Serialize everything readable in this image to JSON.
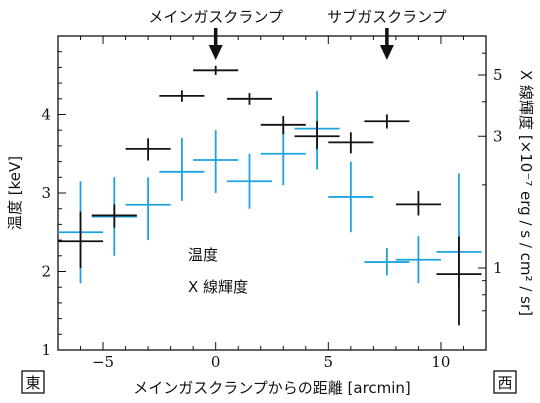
{
  "chart_data": {
    "type": "scatter",
    "title": "",
    "x": {
      "label": "メインガスクランプからの距離 [arcmin]",
      "range": [
        -7,
        12
      ],
      "ticks": [
        -5,
        0,
        5,
        10
      ],
      "tick_labels": [
        "−5",
        "0",
        "5",
        "10"
      ],
      "west_label": "西",
      "east_label": "東"
    },
    "y_left": {
      "label": "温度 [keV]",
      "range": [
        1,
        5
      ],
      "ticks": [
        1,
        2,
        3,
        4
      ],
      "tick_labels": [
        "1",
        "2",
        "3",
        "4"
      ]
    },
    "y_right": {
      "label": "X 線輝度 [×10⁻⁷ erg / s / cm² / sr]",
      "scale": "log",
      "ticks": [
        1,
        3,
        5
      ],
      "tick_labels": [
        "1",
        "3",
        "5"
      ]
    },
    "legend": {
      "placement": "lower-left inside",
      "entries": [
        {
          "label": "温度",
          "color": "#1ba3e0"
        },
        {
          "label": "X 線輝度",
          "color": "#111111"
        }
      ]
    },
    "annotations": [
      {
        "label": "メインガスクランプ",
        "x": 0
      },
      {
        "label": "サブガスクランプ",
        "x": 7.6
      }
    ],
    "series": [
      {
        "name": "温度",
        "axis": "left",
        "color": "#1ba3e0",
        "points": [
          {
            "x": -6.0,
            "xerr": 1.0,
            "y": 2.5,
            "ylo": 1.85,
            "yhi": 3.15
          },
          {
            "x": -4.5,
            "xerr": 1.0,
            "y": 2.7,
            "ylo": 2.2,
            "yhi": 3.2
          },
          {
            "x": -3.0,
            "xerr": 1.0,
            "y": 2.85,
            "ylo": 2.4,
            "yhi": 3.2
          },
          {
            "x": -1.5,
            "xerr": 1.0,
            "y": 3.27,
            "ylo": 2.9,
            "yhi": 3.7
          },
          {
            "x": 0.0,
            "xerr": 1.0,
            "y": 3.42,
            "ylo": 3.0,
            "yhi": 3.8
          },
          {
            "x": 1.5,
            "xerr": 1.0,
            "y": 3.15,
            "ylo": 2.8,
            "yhi": 3.5
          },
          {
            "x": 3.0,
            "xerr": 1.0,
            "y": 3.5,
            "ylo": 3.1,
            "yhi": 3.9
          },
          {
            "x": 4.5,
            "xerr": 1.0,
            "y": 3.82,
            "ylo": 3.3,
            "yhi": 4.3
          },
          {
            "x": 6.0,
            "xerr": 1.0,
            "y": 2.95,
            "ylo": 2.5,
            "yhi": 3.4
          },
          {
            "x": 7.6,
            "xerr": 1.0,
            "y": 2.12,
            "ylo": 1.95,
            "yhi": 2.3
          },
          {
            "x": 9.0,
            "xerr": 1.0,
            "y": 2.15,
            "ylo": 1.85,
            "yhi": 2.45
          },
          {
            "x": 10.8,
            "xerr": 1.0,
            "y": 2.25,
            "ylo": 1.8,
            "yhi": 3.25
          }
        ]
      },
      {
        "name": "X 線輝度",
        "axis": "right",
        "color": "#111111",
        "points": [
          {
            "x": -6.0,
            "xerr": 1.0,
            "y": 1.25,
            "ylo": 1.0,
            "yhi": 1.6
          },
          {
            "x": -4.5,
            "xerr": 1.0,
            "y": 1.55,
            "ylo": 1.4,
            "yhi": 1.7
          },
          {
            "x": -3.0,
            "xerr": 1.0,
            "y": 2.7,
            "ylo": 2.45,
            "yhi": 2.95
          },
          {
            "x": -1.5,
            "xerr": 1.0,
            "y": 4.2,
            "ylo": 4.0,
            "yhi": 4.4
          },
          {
            "x": 0.0,
            "xerr": 1.0,
            "y": 5.2,
            "ylo": 5.0,
            "yhi": 5.4
          },
          {
            "x": 1.5,
            "xerr": 1.0,
            "y": 4.1,
            "ylo": 3.9,
            "yhi": 4.3
          },
          {
            "x": 3.0,
            "xerr": 1.0,
            "y": 3.3,
            "ylo": 3.05,
            "yhi": 3.55
          },
          {
            "x": 4.5,
            "xerr": 1.0,
            "y": 3.0,
            "ylo": 2.7,
            "yhi": 3.4
          },
          {
            "x": 6.0,
            "xerr": 1.0,
            "y": 2.85,
            "ylo": 2.6,
            "yhi": 3.1
          },
          {
            "x": 7.6,
            "xerr": 1.0,
            "y": 3.4,
            "ylo": 3.2,
            "yhi": 3.6
          },
          {
            "x": 9.0,
            "xerr": 1.0,
            "y": 1.7,
            "ylo": 1.55,
            "yhi": 1.9
          },
          {
            "x": 10.8,
            "xerr": 1.0,
            "y": 0.95,
            "ylo": 0.62,
            "yhi": 1.3
          }
        ]
      }
    ]
  }
}
